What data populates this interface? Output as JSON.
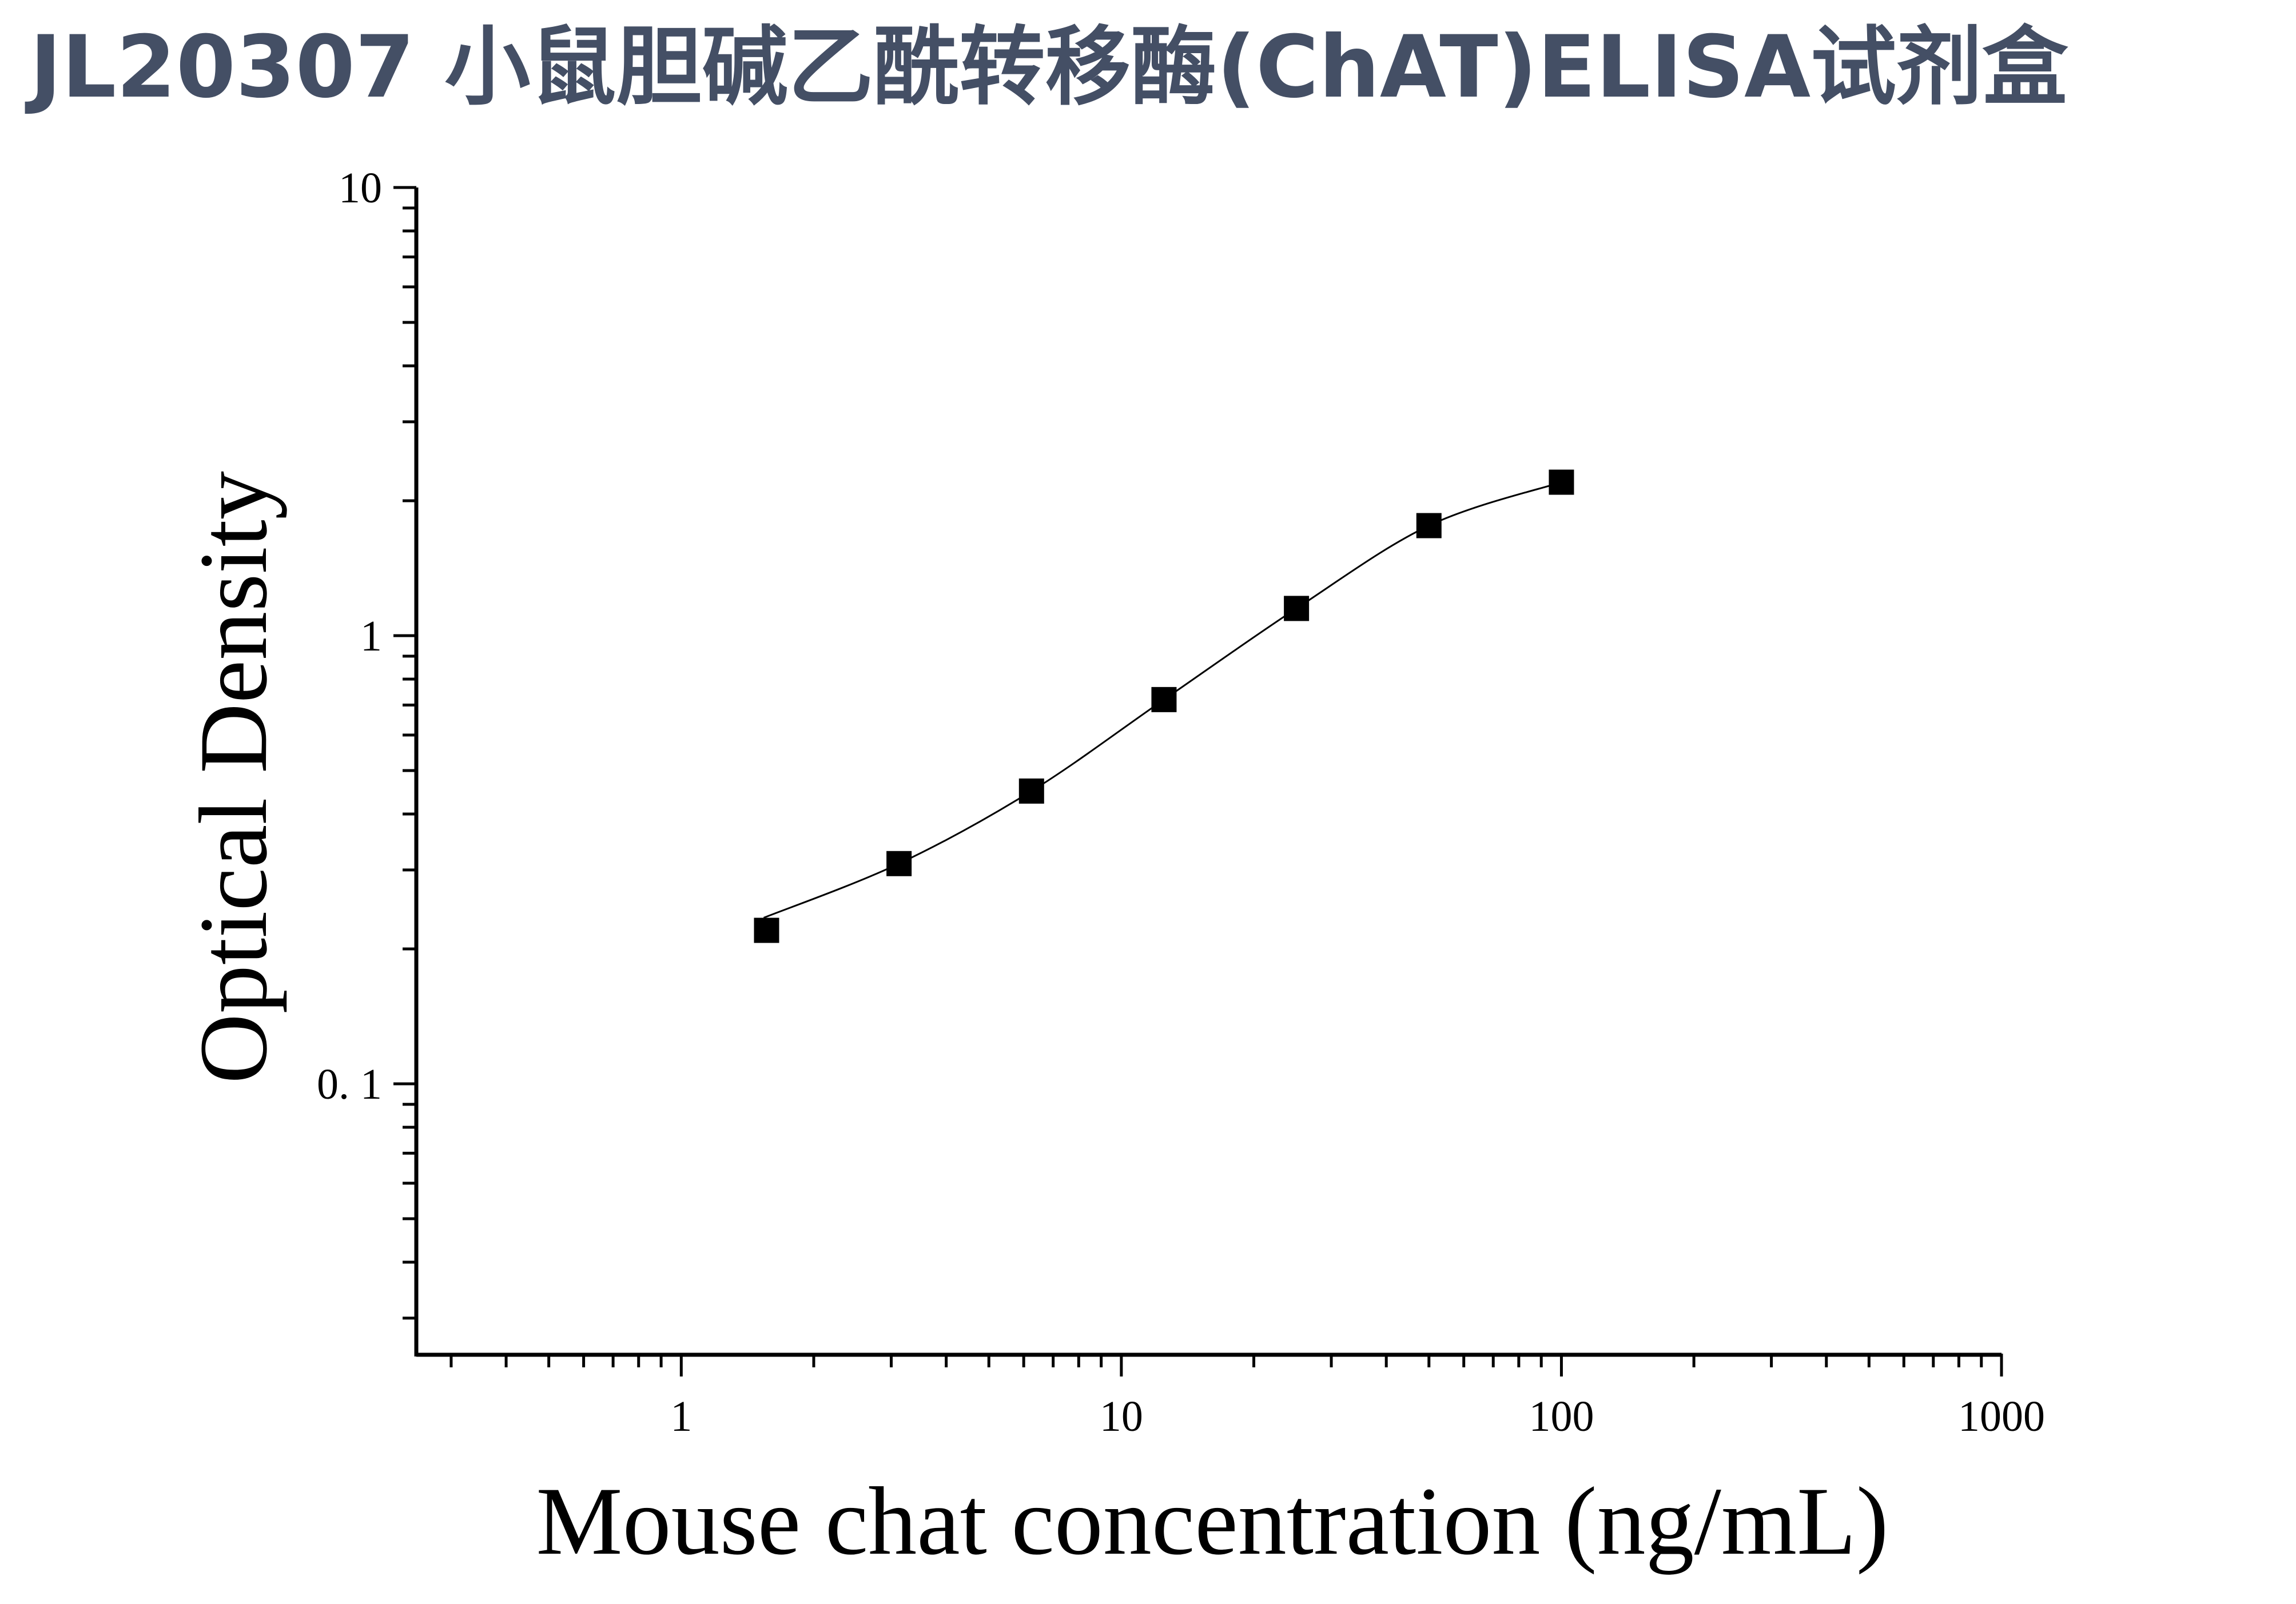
{
  "title": "JL20307 小鼠胆碱乙酰转移酶(ChAT)ELISA试剂盒",
  "chart_data": {
    "type": "scatter",
    "xlabel": "Mouse chat concentration (ng/mL)",
    "ylabel": "Optical Density",
    "x_scale": "log",
    "y_scale": "log",
    "xlim": [
      0.25,
      1000
    ],
    "ylim": [
      0.025,
      10
    ],
    "x_ticks": [
      "1",
      "10",
      "100",
      "1000"
    ],
    "y_ticks": [
      "0. 1",
      "1",
      "10"
    ],
    "grid": false,
    "series": [
      {
        "marker": "square",
        "color": "#000000",
        "x": [
          1.5625,
          3.125,
          6.25,
          12.5,
          25,
          50,
          100
        ],
        "y": [
          0.22,
          0.31,
          0.45,
          0.72,
          1.15,
          1.76,
          2.2
        ],
        "fit_curve": true
      }
    ]
  }
}
